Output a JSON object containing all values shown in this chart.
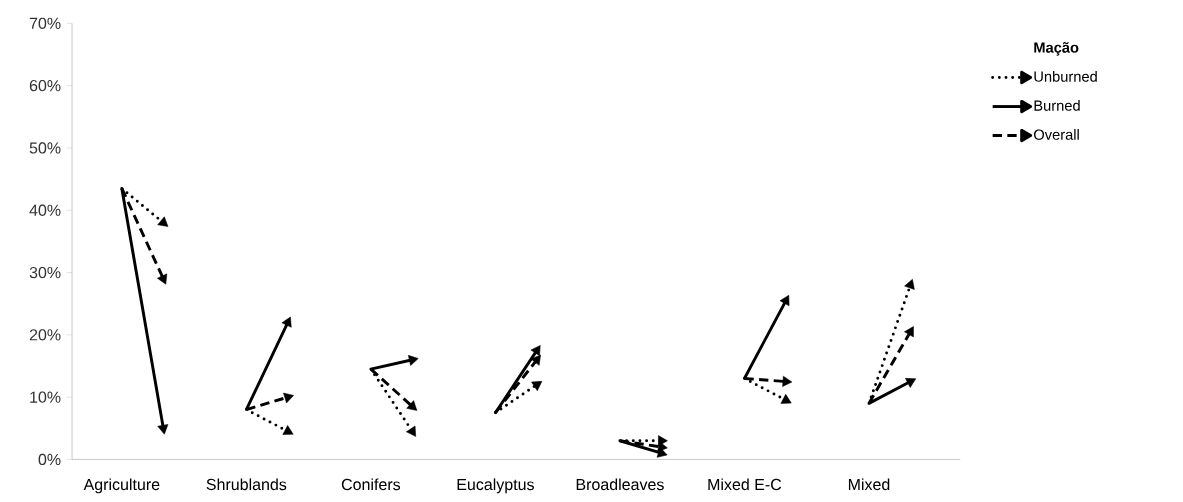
{
  "chart_data": {
    "type": "line",
    "marker": "triangle",
    "legend_title": "Mação",
    "legend": "top right",
    "categories": [
      "Agriculture",
      null,
      null,
      "Shrublands",
      null,
      null,
      "Conifers",
      null,
      null,
      "Eucalyptus",
      null,
      null,
      "Broadleaves",
      null,
      null,
      "Mixed E-C",
      null,
      null,
      "Mixed",
      null
    ],
    "ylim": [
      0,
      70
    ],
    "yticks": [
      {
        "value": 0,
        "label": "0%"
      },
      {
        "value": 10,
        "label": "10%"
      },
      {
        "value": 20,
        "label": "20%"
      },
      {
        "value": 30,
        "label": "30%"
      },
      {
        "value": 40,
        "label": "40%"
      },
      {
        "value": 50,
        "label": "50%"
      },
      {
        "value": 60,
        "label": "60%"
      },
      {
        "value": 70,
        "label": "70%"
      }
    ],
    "series": [
      {
        "name": "Unburned",
        "color": "#000000",
        "line_style": "dotted",
        "values": [
          43.5,
          38,
          null,
          8,
          4.5,
          null,
          14.5,
          4.5,
          null,
          7.5,
          12,
          null,
          3,
          3,
          null,
          13,
          9.5,
          null,
          9,
          28
        ]
      },
      {
        "name": "Burned",
        "color": "#000000",
        "line_style": "solid",
        "values": [
          43.5,
          5,
          null,
          8,
          22,
          null,
          14.5,
          16,
          null,
          7.5,
          17.5,
          null,
          3,
          1,
          null,
          13,
          25.5,
          null,
          9,
          12.5
        ]
      },
      {
        "name": "Overall",
        "color": "#000000",
        "line_style": "dashed",
        "values": [
          43.5,
          29,
          null,
          8,
          10,
          null,
          14.5,
          8.5,
          null,
          7.5,
          16,
          null,
          3,
          2,
          null,
          13,
          12.5,
          null,
          9,
          20.5
        ]
      }
    ]
  }
}
